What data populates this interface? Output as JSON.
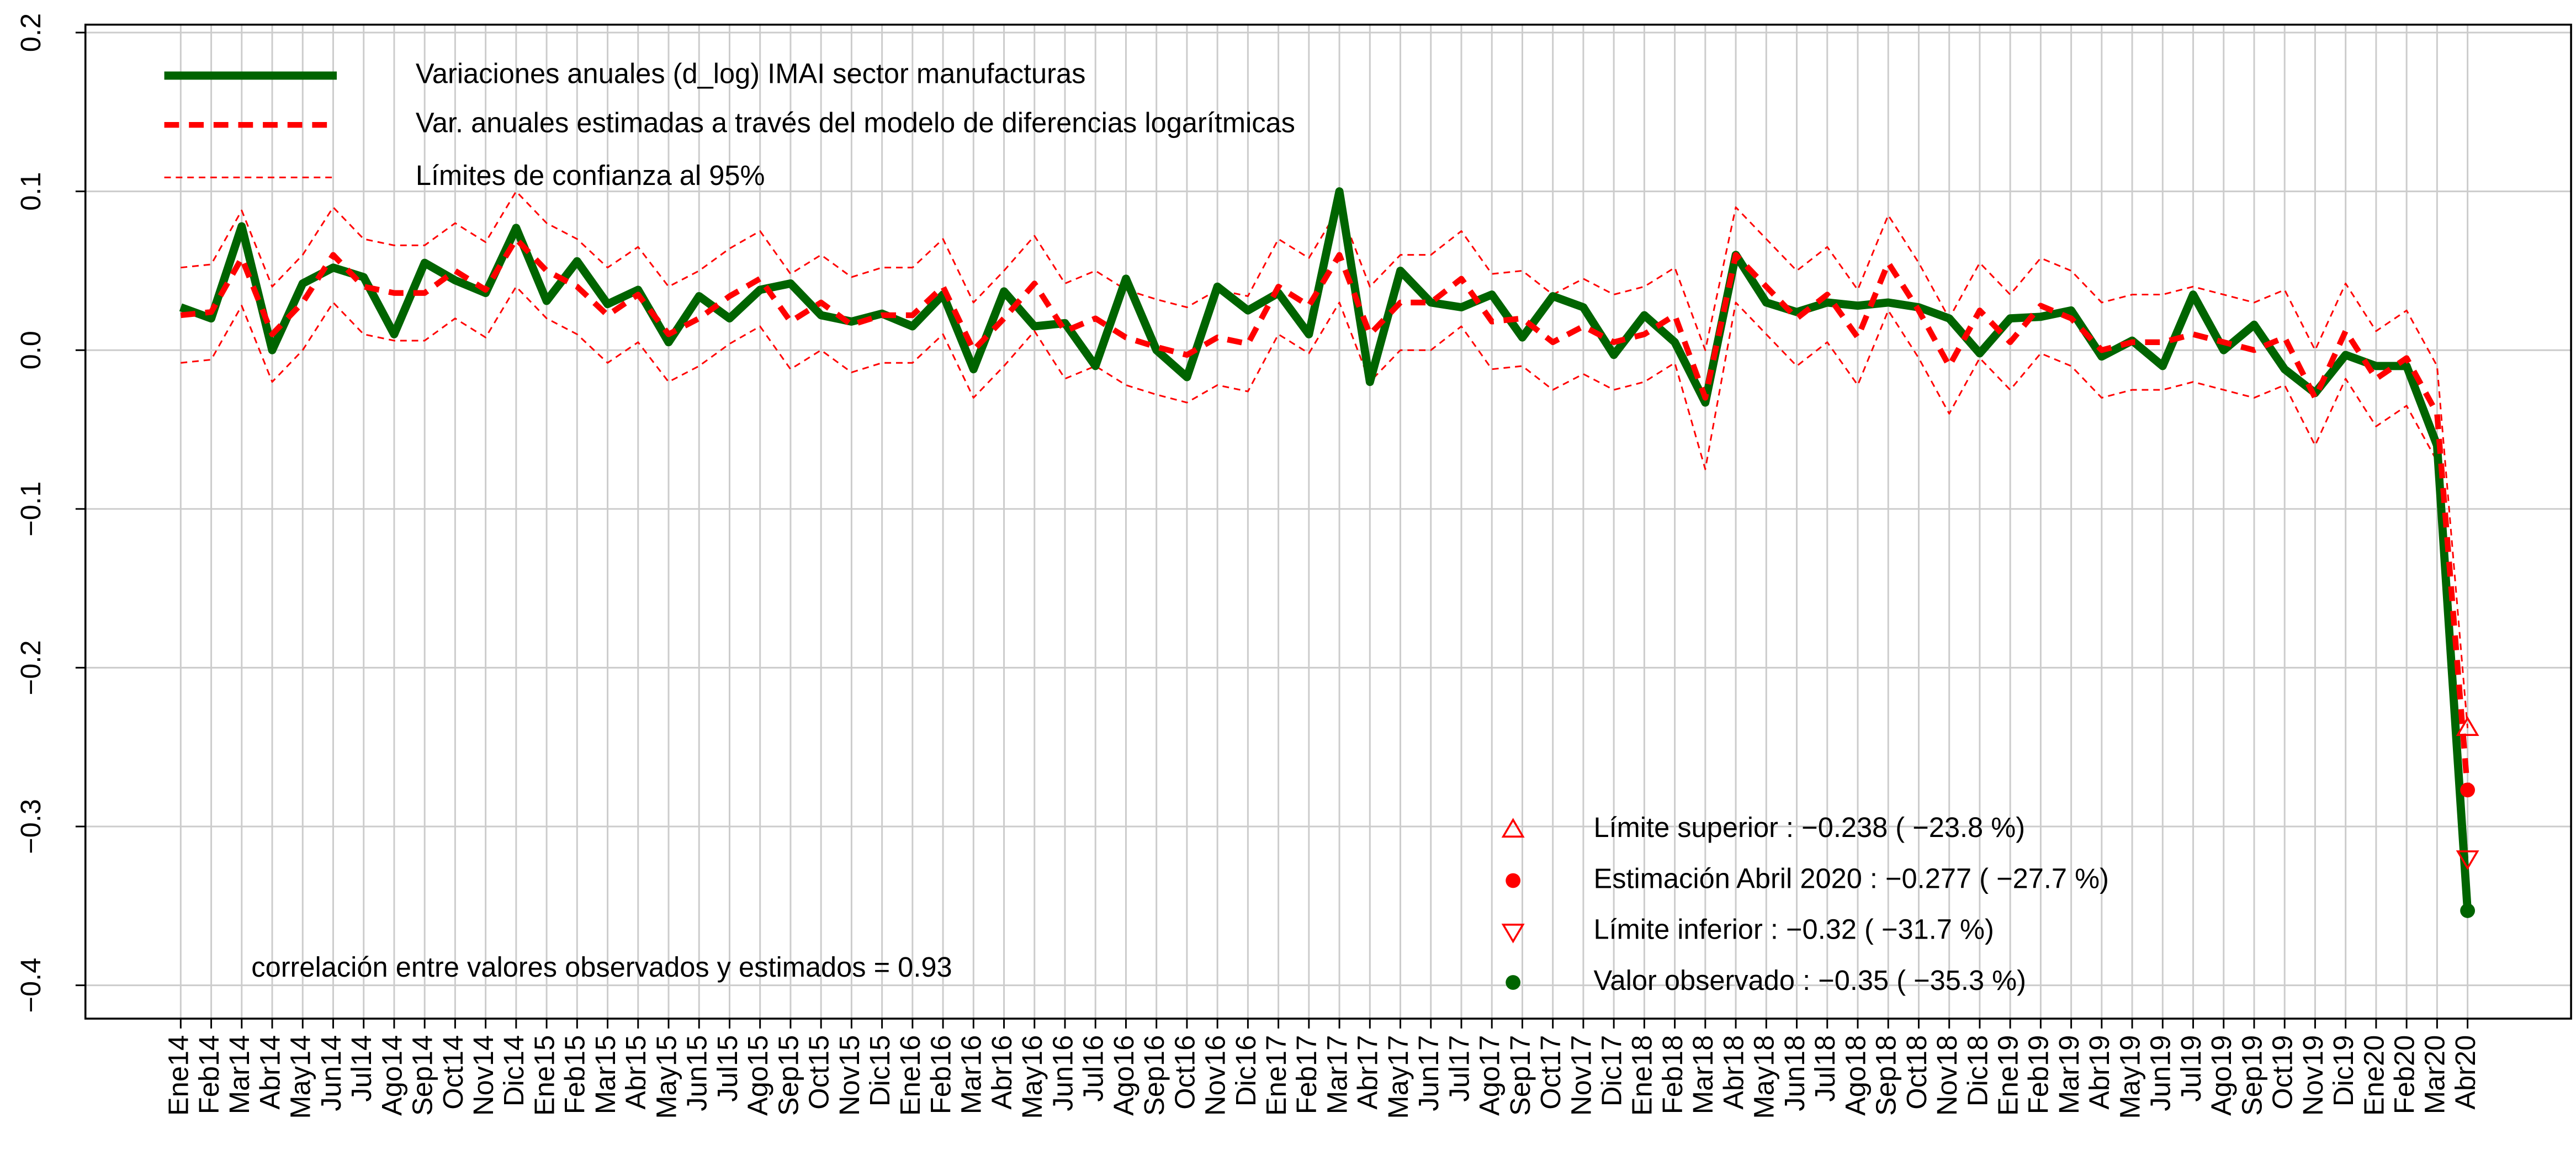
{
  "chart_data": {
    "type": "line",
    "categories": [
      "Ene14",
      "Feb14",
      "Mar14",
      "Abr14",
      "May14",
      "Jun14",
      "Jul14",
      "Ago14",
      "Sep14",
      "Oct14",
      "Nov14",
      "Dic14",
      "Ene15",
      "Feb15",
      "Mar15",
      "Abr15",
      "May15",
      "Jun15",
      "Jul15",
      "Ago15",
      "Sep15",
      "Oct15",
      "Nov15",
      "Dic15",
      "Ene16",
      "Feb16",
      "Mar16",
      "Abr16",
      "May16",
      "Jun16",
      "Jul16",
      "Ago16",
      "Sep16",
      "Oct16",
      "Nov16",
      "Dic16",
      "Ene17",
      "Feb17",
      "Mar17",
      "Abr17",
      "May17",
      "Jun17",
      "Jul17",
      "Ago17",
      "Sep17",
      "Oct17",
      "Nov17",
      "Dic17",
      "Ene18",
      "Feb18",
      "Mar18",
      "Abr18",
      "May18",
      "Jun18",
      "Jul18",
      "Ago18",
      "Sep18",
      "Oct18",
      "Nov18",
      "Dic18",
      "Ene19",
      "Feb19",
      "Mar19",
      "Abr19",
      "May19",
      "Jun19",
      "Jul19",
      "Ago19",
      "Sep19",
      "Oct19",
      "Nov19",
      "Dic19",
      "Ene20",
      "Feb20",
      "Mar20",
      "Abr20"
    ],
    "series": [
      {
        "name": "Variaciones anuales (d_log) IMAI sector manufacturas",
        "color": "#006400",
        "style": "solid-thick",
        "values": [
          0.027,
          0.02,
          0.078,
          0.0,
          0.042,
          0.052,
          0.046,
          0.01,
          0.055,
          0.044,
          0.036,
          0.077,
          0.031,
          0.056,
          0.029,
          0.038,
          0.005,
          0.034,
          0.02,
          0.038,
          0.042,
          0.022,
          0.018,
          0.023,
          0.015,
          0.035,
          -0.012,
          0.037,
          0.015,
          0.017,
          -0.01,
          0.045,
          0.0,
          -0.017,
          0.04,
          0.025,
          0.036,
          0.01,
          0.1,
          -0.02,
          0.05,
          0.03,
          0.027,
          0.035,
          0.008,
          0.034,
          0.027,
          -0.003,
          0.022,
          0.005,
          -0.033,
          0.06,
          0.03,
          0.024,
          0.03,
          0.028,
          0.03,
          0.027,
          0.02,
          -0.002,
          0.02,
          0.021,
          0.025,
          -0.004,
          0.006,
          -0.01,
          0.035,
          0.0,
          0.016,
          -0.012,
          -0.027,
          -0.003,
          -0.01,
          -0.01,
          -0.06,
          -0.353
        ]
      },
      {
        "name": "Var. anuales estimadas a través del modelo de diferencias logarítmicas",
        "color": "#ff0000",
        "style": "dashed-thick",
        "values": [
          0.022,
          0.024,
          0.058,
          0.01,
          0.03,
          0.06,
          0.04,
          0.036,
          0.036,
          0.05,
          0.038,
          0.07,
          0.05,
          0.04,
          0.022,
          0.035,
          0.01,
          0.02,
          0.034,
          0.045,
          0.018,
          0.03,
          0.016,
          0.022,
          0.022,
          0.04,
          0.0,
          0.02,
          0.042,
          0.012,
          0.02,
          0.008,
          0.002,
          -0.003,
          0.008,
          0.004,
          0.04,
          0.028,
          0.06,
          0.01,
          0.03,
          0.03,
          0.045,
          0.018,
          0.02,
          0.005,
          0.015,
          0.005,
          0.01,
          0.022,
          -0.03,
          0.06,
          0.04,
          0.02,
          0.035,
          0.008,
          0.055,
          0.025,
          -0.01,
          0.025,
          0.005,
          0.028,
          0.02,
          0.0,
          0.005,
          0.005,
          0.01,
          0.005,
          0.0,
          0.008,
          -0.03,
          0.012,
          -0.018,
          -0.005,
          -0.04,
          -0.277
        ]
      },
      {
        "name": "Límites de confianza al 95%",
        "color": "#ff0000",
        "style": "dashed-thin",
        "values": [
          0.052,
          0.054,
          0.088,
          0.04,
          0.06,
          0.09,
          0.07,
          0.066,
          0.066,
          0.08,
          0.068,
          0.1,
          0.08,
          0.07,
          0.052,
          0.065,
          0.04,
          0.05,
          0.064,
          0.075,
          0.048,
          0.06,
          0.046,
          0.052,
          0.052,
          0.07,
          0.03,
          0.05,
          0.072,
          0.042,
          0.05,
          0.038,
          0.032,
          0.027,
          0.038,
          0.034,
          0.07,
          0.058,
          0.09,
          0.04,
          0.06,
          0.06,
          0.075,
          0.048,
          0.05,
          0.035,
          0.045,
          0.035,
          0.04,
          0.052,
          0.0,
          0.09,
          0.07,
          0.05,
          0.065,
          0.038,
          0.085,
          0.055,
          0.02,
          0.055,
          0.035,
          0.058,
          0.05,
          0.03,
          0.035,
          0.035,
          0.04,
          0.035,
          0.03,
          0.038,
          0.0,
          0.042,
          0.012,
          0.025,
          -0.01,
          -0.238
        ]
      },
      {
        "color": "#ff0000",
        "style": "dashed-thin",
        "values": [
          -0.008,
          -0.006,
          0.028,
          -0.02,
          0.0,
          0.03,
          0.01,
          0.006,
          0.006,
          0.02,
          0.008,
          0.04,
          0.02,
          0.01,
          -0.008,
          0.005,
          -0.02,
          -0.01,
          0.004,
          0.015,
          -0.012,
          0.0,
          -0.014,
          -0.008,
          -0.008,
          0.01,
          -0.03,
          -0.01,
          0.012,
          -0.018,
          -0.01,
          -0.022,
          -0.028,
          -0.033,
          -0.022,
          -0.026,
          0.01,
          -0.002,
          0.03,
          -0.02,
          0.0,
          0.0,
          0.015,
          -0.012,
          -0.01,
          -0.025,
          -0.015,
          -0.025,
          -0.02,
          -0.008,
          -0.075,
          0.03,
          0.01,
          -0.01,
          0.005,
          -0.022,
          0.025,
          -0.005,
          -0.04,
          -0.005,
          -0.025,
          -0.002,
          -0.01,
          -0.03,
          -0.025,
          -0.025,
          -0.02,
          -0.025,
          -0.03,
          -0.022,
          -0.06,
          -0.018,
          -0.048,
          -0.035,
          -0.07,
          -0.32
        ]
      }
    ],
    "ylim": [
      -0.421,
      0.205
    ],
    "yticks": [
      {
        "value": -0.4,
        "label": "−0.4"
      },
      {
        "value": -0.3,
        "label": "−0.3"
      },
      {
        "value": -0.2,
        "label": "−0.2"
      },
      {
        "value": -0.1,
        "label": "−0.1"
      },
      {
        "value": 0,
        "label": "0.0"
      },
      0.1,
      0.2
    ],
    "grid": true,
    "legend": "top-left",
    "end_markers": [
      {
        "series": 2,
        "marker": "triangle-up",
        "color": "#ff0000"
      },
      {
        "series": 1,
        "marker": "dot",
        "color": "#ff0000"
      },
      {
        "series": 3,
        "marker": "triangle-down",
        "color": "#ff0000"
      },
      {
        "series": 0,
        "marker": "dot",
        "color": "#006400"
      }
    ],
    "annotations": [
      {
        "text": "Límite superior :  −0.238    ( −23.8 %)",
        "marker": "triangle-up",
        "color": "#ff0000"
      },
      {
        "text": "Estimación Abril 2020 :  −0.277    ( −27.7 %)",
        "marker": "dot",
        "color": "#ff0000"
      },
      {
        "text": "Límite inferior :  −0.32    ( −31.7 %)",
        "marker": "triangle-down",
        "color": "#ff0000"
      },
      {
        "text": "Valor observado :  −0.35    ( −35.3 %)",
        "marker": "dot",
        "color": "#006400"
      }
    ],
    "note": "correlación entre valores observados y estimados =  0.93"
  }
}
